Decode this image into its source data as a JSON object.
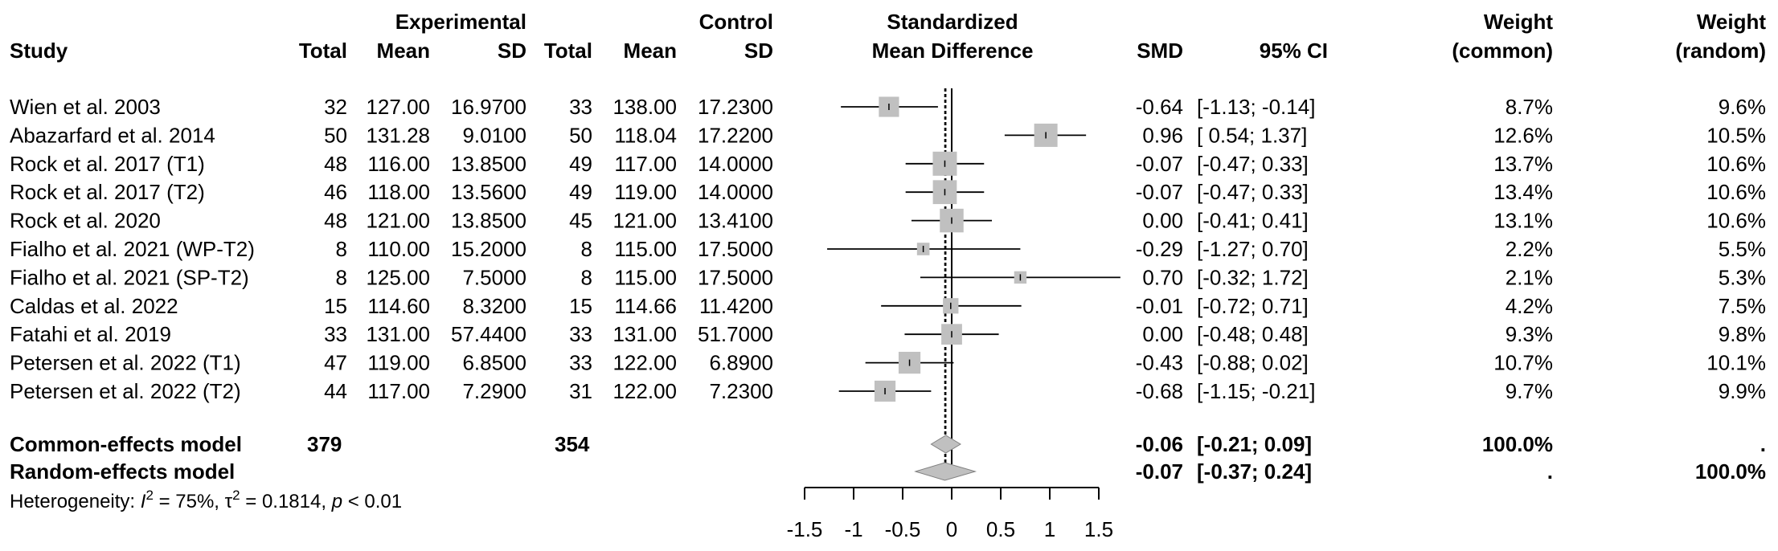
{
  "chart_data": {
    "type": "forest",
    "columns": {
      "group_experimental": "Experimental",
      "group_control": "Control",
      "study": "Study",
      "total": "Total",
      "mean": "Mean",
      "sd": "SD",
      "plot_title_line1": "Standardized",
      "plot_title_line2": "Mean Difference",
      "smd": "SMD",
      "ci": "95% CI",
      "weight_line1": "Weight",
      "weight_common_line2": "(common)",
      "weight_random_line2": "(random)"
    },
    "studies": [
      {
        "study": "Wien et al. 2003",
        "e_total": "32",
        "e_mean": "127.00",
        "e_sd": "16.9700",
        "c_total": "33",
        "c_mean": "138.00",
        "c_sd": "17.2300",
        "smd": -0.64,
        "lo": -1.13,
        "hi": -0.14,
        "smd_text": "-0.64",
        "ci_text": "[-1.13; -0.14]",
        "w_common": "8.7%",
        "w_random": "9.6%",
        "w_common_value": 8.7
      },
      {
        "study": "Abazarfard et al. 2014",
        "e_total": "50",
        "e_mean": "131.28",
        "e_sd": "9.0100",
        "c_total": "50",
        "c_mean": "118.04",
        "c_sd": "17.2200",
        "smd": 0.96,
        "lo": 0.54,
        "hi": 1.37,
        "smd_text": "0.96",
        "ci_text": "[ 0.54;  1.37]",
        "w_common": "12.6%",
        "w_random": "10.5%",
        "w_common_value": 12.6
      },
      {
        "study": "Rock et al. 2017 (T1)",
        "e_total": "48",
        "e_mean": "116.00",
        "e_sd": "13.8500",
        "c_total": "49",
        "c_mean": "117.00",
        "c_sd": "14.0000",
        "smd": -0.07,
        "lo": -0.47,
        "hi": 0.33,
        "smd_text": "-0.07",
        "ci_text": "[-0.47;  0.33]",
        "w_common": "13.7%",
        "w_random": "10.6%",
        "w_common_value": 13.7
      },
      {
        "study": "Rock et al. 2017 (T2)",
        "e_total": "46",
        "e_mean": "118.00",
        "e_sd": "13.5600",
        "c_total": "49",
        "c_mean": "119.00",
        "c_sd": "14.0000",
        "smd": -0.07,
        "lo": -0.47,
        "hi": 0.33,
        "smd_text": "-0.07",
        "ci_text": "[-0.47;  0.33]",
        "w_common": "13.4%",
        "w_random": "10.6%",
        "w_common_value": 13.4
      },
      {
        "study": "Rock et al. 2020",
        "e_total": "48",
        "e_mean": "121.00",
        "e_sd": "13.8500",
        "c_total": "45",
        "c_mean": "121.00",
        "c_sd": "13.4100",
        "smd": 0.0,
        "lo": -0.41,
        "hi": 0.41,
        "smd_text": "0.00",
        "ci_text": "[-0.41;  0.41]",
        "w_common": "13.1%",
        "w_random": "10.6%",
        "w_common_value": 13.1
      },
      {
        "study": "Fialho et al. 2021 (WP-T2)",
        "e_total": "8",
        "e_mean": "110.00",
        "e_sd": "15.2000",
        "c_total": "8",
        "c_mean": "115.00",
        "c_sd": "17.5000",
        "smd": -0.29,
        "lo": -1.27,
        "hi": 0.7,
        "smd_text": "-0.29",
        "ci_text": "[-1.27;  0.70]",
        "w_common": "2.2%",
        "w_random": "5.5%",
        "w_common_value": 2.2
      },
      {
        "study": "Fialho et al. 2021 (SP-T2)",
        "e_total": "8",
        "e_mean": "125.00",
        "e_sd": "7.5000",
        "c_total": "8",
        "c_mean": "115.00",
        "c_sd": "17.5000",
        "smd": 0.7,
        "lo": -0.32,
        "hi": 1.72,
        "smd_text": "0.70",
        "ci_text": "[-0.32;  1.72]",
        "w_common": "2.1%",
        "w_random": "5.3%",
        "w_common_value": 2.1
      },
      {
        "study": "Caldas et al. 2022",
        "e_total": "15",
        "e_mean": "114.60",
        "e_sd": "8.3200",
        "c_total": "15",
        "c_mean": "114.66",
        "c_sd": "11.4200",
        "smd": -0.01,
        "lo": -0.72,
        "hi": 0.71,
        "smd_text": "-0.01",
        "ci_text": "[-0.72;  0.71]",
        "w_common": "4.2%",
        "w_random": "7.5%",
        "w_common_value": 4.2
      },
      {
        "study": "Fatahi et al. 2019",
        "e_total": "33",
        "e_mean": "131.00",
        "e_sd": "57.4400",
        "c_total": "33",
        "c_mean": "131.00",
        "c_sd": "51.7000",
        "smd": 0.0,
        "lo": -0.48,
        "hi": 0.48,
        "smd_text": "0.00",
        "ci_text": "[-0.48;  0.48]",
        "w_common": "9.3%",
        "w_random": "9.8%",
        "w_common_value": 9.3
      },
      {
        "study": "Petersen et al. 2022 (T1)",
        "e_total": "47",
        "e_mean": "119.00",
        "e_sd": "6.8500",
        "c_total": "33",
        "c_mean": "122.00",
        "c_sd": "6.8900",
        "smd": -0.43,
        "lo": -0.88,
        "hi": 0.02,
        "smd_text": "-0.43",
        "ci_text": "[-0.88;  0.02]",
        "w_common": "10.7%",
        "w_random": "10.1%",
        "w_common_value": 10.7
      },
      {
        "study": "Petersen et al. 2022 (T2)",
        "e_total": "44",
        "e_mean": "117.00",
        "e_sd": "7.2900",
        "c_total": "31",
        "c_mean": "122.00",
        "c_sd": "7.2300",
        "smd": -0.68,
        "lo": -1.15,
        "hi": -0.21,
        "smd_text": "-0.68",
        "ci_text": "[-1.15; -0.21]",
        "w_common": "9.7%",
        "w_random": "9.9%",
        "w_common_value": 9.7
      }
    ],
    "models": [
      {
        "label": "Common-effects model",
        "e_total": "379",
        "c_total": "354",
        "smd": -0.06,
        "lo": -0.21,
        "hi": 0.09,
        "smd_text": "-0.06",
        "ci_text": "[-0.21;  0.09]",
        "w_common": "100.0%",
        "w_random": "."
      },
      {
        "label": "Random-effects model",
        "e_total": "",
        "c_total": "",
        "smd": -0.07,
        "lo": -0.37,
        "hi": 0.24,
        "smd_text": "-0.07",
        "ci_text": "[-0.37;  0.24]",
        "w_common": ".",
        "w_random": "100.0%"
      }
    ],
    "heterogeneity": {
      "label": "Heterogeneity: ",
      "i2_symbol": "I",
      "i2_sup": "2",
      "i2_value": " = 75%, ",
      "tau_symbol": "τ",
      "tau_sup": "2",
      "tau_value": " = 0.1814, ",
      "p_symbol": "p",
      "p_value": " < 0.01"
    },
    "axis": {
      "ticks": [
        -1.5,
        -1,
        -0.5,
        0,
        0.5,
        1,
        1.5
      ],
      "tick_labels": [
        "-1.5",
        "-1",
        "-0.5",
        "0",
        "0.5",
        "1",
        "1.5"
      ],
      "xlim": [
        -1.5,
        1.5
      ]
    },
    "reference_line": 0,
    "colors": {
      "square": "#c0c0c0",
      "diamond": "#c0c0c0",
      "line": "#000000",
      "text": "#000000"
    }
  }
}
